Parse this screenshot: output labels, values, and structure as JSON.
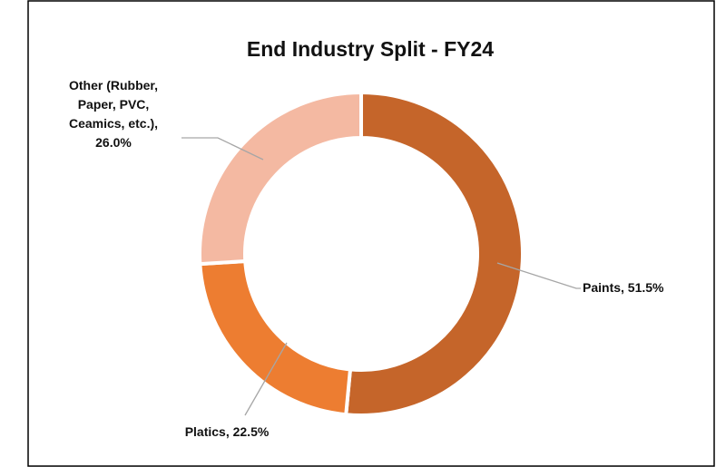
{
  "chart_data": {
    "type": "donut",
    "title": "End Industry Split - FY24",
    "values": [
      51.5,
      22.5,
      26.0
    ],
    "value_labels": [
      "Paints, 51.5%",
      "Platics, 22.5%",
      "Other (Rubber, Paper, PVC, Ceamics, etc.), 26.0%"
    ],
    "colors": [
      "#c5652a",
      "#ed7d31",
      "#f4b9a2"
    ]
  }
}
